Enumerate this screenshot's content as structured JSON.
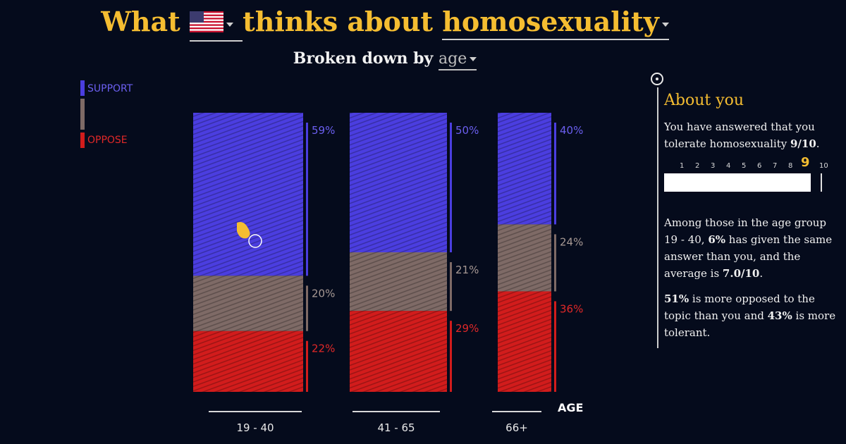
{
  "header": {
    "title_prefix": "What",
    "country_icon": "us-flag-icon",
    "title_middle": "thinks about",
    "topic": "homosexuality",
    "breakdown_prefix": "Broken down by",
    "breakdown_value": "age"
  },
  "legend": {
    "support": "SUPPORT",
    "oppose": "OPPOSE"
  },
  "colors": {
    "support": "#4b3ee0",
    "neutral": "#7e6a66",
    "oppose": "#d21c1c",
    "accent": "#f5bd31",
    "background": "#050b1c"
  },
  "chart_data": {
    "type": "bar",
    "stacked": true,
    "xlabel": "AGE",
    "categories": [
      "19 - 40",
      "41 - 65",
      "66+"
    ],
    "series": [
      {
        "name": "SUPPORT",
        "values": [
          59,
          50,
          40
        ],
        "labels": [
          "59%",
          "50%",
          "40%"
        ]
      },
      {
        "name": "",
        "values": [
          20,
          21,
          24
        ],
        "labels": [
          "20%",
          "21%",
          "24%"
        ]
      },
      {
        "name": "OPPOSE",
        "values": [
          22,
          29,
          36
        ],
        "labels": [
          "22%",
          "29%",
          "36%"
        ]
      }
    ]
  },
  "about": {
    "heading": "About you",
    "answer_text_1": "You have answered that you tolerate homosexuality ",
    "answer_value": "9/10",
    "answer_text_2": ".",
    "scale_labels": [
      "1",
      "2",
      "3",
      "4",
      "5",
      "6",
      "7",
      "8",
      "9",
      "10"
    ],
    "selected": 9,
    "group_text_1": "Among those in the age group 19 - 40, ",
    "same_pct": "6%",
    "group_text_2": " has given the same answer than you, and the average is ",
    "average": "7.0/10",
    "group_text_3": ".",
    "opposed_pct": "51%",
    "opposed_text": " is more opposed to the topic than you and ",
    "tolerant_pct": "43%",
    "tolerant_text": " is more tolerant."
  }
}
